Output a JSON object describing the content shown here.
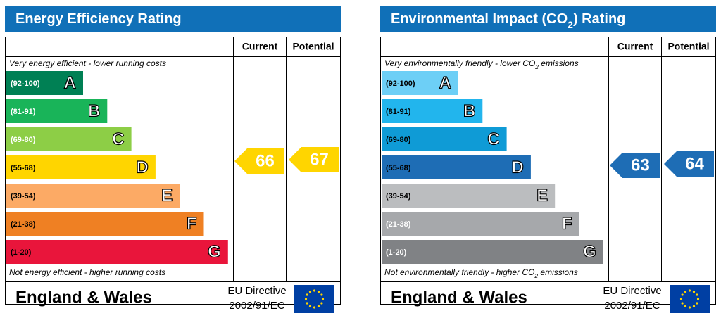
{
  "panels": [
    {
      "title": [
        "Energy Efficiency Rating"
      ],
      "current_label": "Current",
      "potential_label": "Potential",
      "top_note": [
        "Very energy efficient - lower running costs"
      ],
      "bottom_note": [
        "Not energy efficient - higher running costs"
      ],
      "bands": [
        {
          "range": "(92-100)",
          "letter": "A",
          "color": "#008054",
          "text_color": "#ffffff"
        },
        {
          "range": "(81-91)",
          "letter": "B",
          "color": "#19b459",
          "text_color": "#ffffff"
        },
        {
          "range": "(69-80)",
          "letter": "C",
          "color": "#8dce46",
          "text_color": "#ffffff"
        },
        {
          "range": "(55-68)",
          "letter": "D",
          "color": "#ffd500",
          "text_color": "#000000"
        },
        {
          "range": "(39-54)",
          "letter": "E",
          "color": "#fcaa65",
          "text_color": "#000000"
        },
        {
          "range": "(21-38)",
          "letter": "F",
          "color": "#ef8023",
          "text_color": "#000000"
        },
        {
          "range": "(1-20)",
          "letter": "G",
          "color": "#e9153b",
          "text_color": "#000000"
        }
      ],
      "current": 66,
      "potential": 67,
      "arrow_color": "#ffd500",
      "region": "England & Wales",
      "directive": [
        "EU Directive",
        "2002/91/EC"
      ]
    },
    {
      "title": [
        "Environmental Impact (CO",
        "2",
        ") Rating"
      ],
      "current_label": "Current",
      "potential_label": "Potential",
      "top_note": [
        "Very environmentally friendly - lower CO",
        "2",
        " emissions"
      ],
      "bottom_note": [
        "Not environmentally friendly - higher CO",
        "2",
        " emissions"
      ],
      "bands": [
        {
          "range": "(92-100)",
          "letter": "A",
          "color": "#6dcff6",
          "text_color": "#000000"
        },
        {
          "range": "(81-91)",
          "letter": "B",
          "color": "#22b5ed",
          "text_color": "#000000"
        },
        {
          "range": "(69-80)",
          "letter": "C",
          "color": "#0f9bd6",
          "text_color": "#000000"
        },
        {
          "range": "(55-68)",
          "letter": "D",
          "color": "#1e6db5",
          "text_color": "#000000"
        },
        {
          "range": "(39-54)",
          "letter": "E",
          "color": "#bbbdbf",
          "text_color": "#000000"
        },
        {
          "range": "(21-38)",
          "letter": "F",
          "color": "#a6a8ab",
          "text_color": "#ffffff"
        },
        {
          "range": "(1-20)",
          "letter": "G",
          "color": "#808285",
          "text_color": "#ffffff"
        }
      ],
      "current": 63,
      "potential": 64,
      "arrow_color": "#1e6db5",
      "region": "England & Wales",
      "directive": [
        "EU Directive",
        "2002/91/EC"
      ]
    }
  ]
}
